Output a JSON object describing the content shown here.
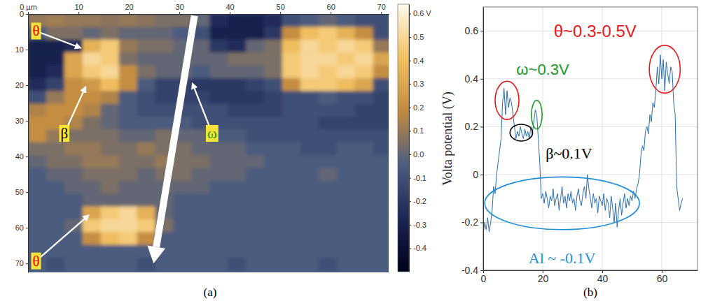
{
  "chart_data": [
    {
      "type": "heatmap",
      "label": "(a)",
      "xlim": [
        0,
        71.5
      ],
      "ylim": [
        0,
        72.5
      ],
      "xticks": [
        {
          "value": 0,
          "label": "0 µm"
        },
        10,
        20,
        30,
        40,
        50,
        60,
        70
      ],
      "yticks": [
        0,
        10,
        20,
        30,
        40,
        50,
        60,
        70
      ],
      "colorbar_lim": [
        -0.5,
        0.64
      ],
      "colorbar_ticks": [
        {
          "value": 0.6,
          "label": "0.6 V"
        },
        0.5,
        0.4,
        0.3,
        0.2,
        0.1,
        {
          "value": 0,
          "label": "0.0"
        },
        -0.1,
        -0.2,
        -0.3,
        -0.4
      ],
      "x_edges": [
        0,
        3.6,
        7.2,
        10.8,
        14.4,
        18,
        21.6,
        25.2,
        28.8,
        32.4,
        36,
        39.6,
        43.2,
        46.8,
        50.4,
        54,
        57.6,
        61.2,
        64.8,
        68.4,
        72
      ],
      "y_edges": [
        0,
        3.6,
        7.2,
        10.8,
        14.4,
        18,
        21.6,
        25.2,
        28.8,
        32.4,
        36,
        39.6,
        43.2,
        46.8,
        50.4,
        54,
        57.6,
        61.2,
        64.8,
        68.4,
        72
      ],
      "cells": [
        [
          0.1,
          0.12,
          0.1,
          0.1,
          0.08,
          0.1,
          0.08,
          0.05,
          0.05,
          0,
          -0.25,
          -0.3,
          -0.3,
          -0.25,
          -0.1,
          -0.05,
          0,
          -0.05,
          -0.1,
          -0.1
        ],
        [
          -0.05,
          0.05,
          0.05,
          0,
          0.05,
          0,
          0,
          0,
          -0.05,
          -0.1,
          -0.3,
          -0.3,
          -0.3,
          -0.2,
          0.2,
          0.4,
          0.45,
          0.35,
          0.2,
          -0.1
        ],
        [
          -0.3,
          -0.3,
          -0.25,
          0.35,
          0.45,
          0.1,
          0.05,
          0.05,
          0,
          0,
          -0.2,
          -0.25,
          0,
          0.05,
          0.4,
          0.5,
          0.45,
          0.5,
          0.45,
          0.1
        ],
        [
          -0.3,
          -0.3,
          0.3,
          0.5,
          0.45,
          0.05,
          0,
          0,
          0,
          0,
          0,
          0.05,
          0.05,
          0.05,
          0.45,
          0.5,
          0.5,
          0.45,
          0.5,
          0.3
        ],
        [
          -0.3,
          -0.25,
          0.3,
          0.45,
          0.5,
          0.2,
          0.05,
          0,
          0,
          -0.05,
          0,
          0,
          0,
          0.05,
          0.45,
          0.5,
          0.45,
          0.5,
          0.45,
          0.2
        ],
        [
          -0.25,
          -0.15,
          0.2,
          0.25,
          0.4,
          0.2,
          -0.05,
          -0.15,
          -0.15,
          -0.2,
          -0.2,
          -0.2,
          -0.15,
          -0.1,
          0.2,
          0.45,
          0.45,
          0.4,
          0.3,
          -0.1
        ],
        [
          -0.1,
          0.1,
          0.2,
          0.2,
          0.15,
          -0.05,
          -0.1,
          -0.15,
          -0.15,
          -0.15,
          -0.2,
          -0.2,
          -0.2,
          -0.15,
          -0.1,
          -0.1,
          -0.05,
          -0.1,
          -0.1,
          -0.15
        ],
        [
          0.15,
          0.2,
          0.2,
          0.15,
          0,
          -0.05,
          -0.1,
          -0.1,
          -0.1,
          -0.1,
          -0.1,
          -0.15,
          -0.15,
          -0.15,
          -0.1,
          -0.1,
          -0.1,
          -0.1,
          -0.15,
          -0.15
        ],
        [
          0.2,
          0.2,
          0.15,
          0.05,
          0,
          -0.05,
          -0.05,
          -0.05,
          -0.05,
          -0.1,
          -0.1,
          -0.1,
          -0.1,
          -0.1,
          -0.1,
          -0.1,
          -0.15,
          -0.15,
          -0.15,
          -0.15
        ],
        [
          0.2,
          0.1,
          0.05,
          0.05,
          0.05,
          0,
          0,
          0.05,
          0,
          0,
          -0.05,
          -0.05,
          -0.1,
          -0.1,
          -0.1,
          -0.1,
          -0.1,
          -0.1,
          -0.1,
          -0.1
        ],
        [
          0.05,
          0.05,
          0.1,
          0.1,
          0.05,
          0.05,
          0.1,
          0.05,
          0.05,
          0,
          0,
          0,
          -0.05,
          -0.05,
          -0.05,
          -0.1,
          -0.1,
          -0.05,
          -0.05,
          -0.1
        ],
        [
          0,
          0.05,
          0.05,
          0.1,
          0.1,
          0.05,
          0.05,
          0.1,
          0.05,
          0.05,
          0,
          0,
          0,
          -0.05,
          -0.05,
          -0.05,
          -0.05,
          -0.05,
          -0.05,
          -0.05
        ],
        [
          -0.05,
          0,
          0,
          0.05,
          0.05,
          0.05,
          0,
          0.05,
          0.05,
          0,
          0,
          0,
          -0.05,
          -0.05,
          -0.05,
          -0.05,
          0,
          -0.05,
          -0.05,
          -0.05
        ],
        [
          -0.05,
          -0.05,
          0,
          0,
          0.05,
          0,
          0,
          0,
          0,
          0,
          -0.05,
          -0.05,
          -0.05,
          -0.05,
          -0.05,
          -0.05,
          -0.05,
          -0.05,
          -0.05,
          -0.05
        ],
        [
          -0.05,
          -0.05,
          -0.05,
          0,
          0,
          0,
          0,
          0,
          -0.05,
          -0.05,
          -0.05,
          -0.05,
          -0.05,
          -0.05,
          -0.05,
          -0.05,
          -0.05,
          -0.05,
          -0.05,
          -0.05
        ],
        [
          -0.05,
          -0.05,
          -0.05,
          0.3,
          0.45,
          0.5,
          0.35,
          0,
          -0.05,
          -0.05,
          -0.05,
          -0.05,
          -0.05,
          -0.05,
          -0.05,
          -0.05,
          -0.05,
          -0.05,
          -0.05,
          -0.05
        ],
        [
          -0.05,
          -0.05,
          0,
          0.45,
          0.5,
          0.5,
          0.45,
          0.05,
          -0.05,
          -0.05,
          -0.05,
          -0.05,
          -0.05,
          -0.05,
          -0.05,
          -0.05,
          -0.05,
          -0.05,
          -0.05,
          -0.05
        ],
        [
          -0.05,
          -0.05,
          -0.05,
          0.2,
          0.4,
          0.45,
          0.2,
          -0.05,
          -0.05,
          -0.05,
          -0.05,
          -0.05,
          -0.05,
          -0.05,
          -0.05,
          -0.05,
          -0.05,
          -0.05,
          -0.05,
          -0.05
        ],
        [
          -0.05,
          -0.05,
          -0.05,
          -0.05,
          -0.05,
          -0.05,
          -0.05,
          -0.05,
          -0.05,
          -0.05,
          -0.05,
          -0.05,
          -0.05,
          -0.05,
          -0.05,
          -0.05,
          -0.05,
          -0.05,
          -0.05,
          -0.05
        ],
        [
          -0.05,
          -0.1,
          -0.05,
          -0.05,
          -0.05,
          -0.05,
          -0.1,
          -0.05,
          -0.05,
          -0.05,
          -0.05,
          -0.1,
          -0.05,
          -0.05,
          -0.05,
          -0.05,
          -0.1,
          -0.05,
          -0.05,
          -0.05
        ]
      ],
      "annotations": [
        {
          "text": "θ",
          "color": "#e8000b"
        },
        {
          "text": "β",
          "color": "#000000"
        },
        {
          "text": "ω",
          "color": "#1a9a1a"
        },
        {
          "text": "θ",
          "color": "#e8000b"
        }
      ]
    },
    {
      "type": "line",
      "label": "(b)",
      "y_label": "Volta potential (V)",
      "xlim": [
        0,
        72
      ],
      "ylim": [
        -0.4,
        0.7
      ],
      "xticks": [
        0,
        20,
        40,
        60
      ],
      "yticks": [
        -0.4,
        -0.2,
        0,
        0.2,
        0.4,
        0.6
      ],
      "grid": true,
      "color": "#2a6db0",
      "x": [
        0,
        0.5,
        1,
        1.5,
        2,
        2.5,
        3,
        3.5,
        4,
        4.5,
        5,
        5.5,
        6,
        6.5,
        7,
        7.5,
        8,
        8.5,
        9,
        9.5,
        10,
        10.5,
        11,
        11.5,
        12,
        12.5,
        13,
        13.5,
        14,
        14.5,
        15,
        15.5,
        16,
        16.5,
        17,
        17.5,
        18,
        18.5,
        19,
        19.5,
        20,
        20.5,
        21,
        21.5,
        22,
        22.5,
        23,
        23.5,
        24,
        24.5,
        25,
        25.5,
        26,
        26.5,
        27,
        27.5,
        28,
        28.5,
        29,
        29.5,
        30,
        30.5,
        31,
        31.5,
        32,
        32.5,
        33,
        33.5,
        34,
        34.5,
        35,
        35.5,
        36,
        36.5,
        37,
        37.5,
        38,
        38.5,
        39,
        39.5,
        40,
        40.5,
        41,
        41.5,
        42,
        42.5,
        43,
        43.5,
        44,
        44.5,
        45,
        45.5,
        46,
        46.5,
        47,
        47.5,
        48,
        48.5,
        49,
        49.5,
        50,
        50.5,
        51,
        51.5,
        52,
        52.5,
        53,
        53.5,
        54,
        54.5,
        55,
        55.5,
        56,
        56.5,
        57,
        57.5,
        58,
        58.5,
        59,
        59.5,
        60,
        60.5,
        61,
        61.5,
        62,
        62.5,
        63,
        63.5,
        64,
        64.5,
        65,
        65.5,
        66,
        66.5,
        67
      ],
      "values": [
        -0.25,
        -0.2,
        -0.23,
        -0.18,
        -0.24,
        -0.2,
        -0.15,
        -0.05,
        -0.08,
        0,
        0.05,
        0.1,
        0.15,
        0.3,
        0.36,
        0.25,
        0.35,
        0.28,
        0.32,
        0.3,
        0.25,
        0.2,
        0.15,
        0.18,
        0.16,
        0.2,
        0.17,
        0.15,
        0.19,
        0.16,
        0.18,
        0.15,
        0.2,
        0.17,
        0.22,
        0.27,
        0.25,
        0.15,
        0.05,
        -0.1,
        -0.08,
        -0.12,
        -0.07,
        -0.1,
        -0.14,
        -0.09,
        -0.11,
        -0.06,
        -0.13,
        -0.1,
        -0.08,
        -0.15,
        -0.1,
        -0.05,
        -0.12,
        -0.09,
        -0.14,
        -0.08,
        -0.11,
        -0.07,
        -0.12,
        -0.1,
        -0.15,
        -0.09,
        -0.06,
        -0.11,
        -0.13,
        -0.08,
        -0.05,
        -0.1,
        0,
        -0.06,
        -0.1,
        -0.14,
        -0.08,
        -0.12,
        -0.1,
        -0.16,
        -0.09,
        -0.11,
        -0.13,
        -0.08,
        -0.15,
        -0.1,
        -0.12,
        -0.18,
        -0.09,
        -0.14,
        -0.2,
        -0.12,
        -0.22,
        -0.15,
        -0.1,
        -0.17,
        -0.12,
        -0.08,
        -0.14,
        -0.1,
        -0.13,
        -0.09,
        -0.11,
        -0.07,
        -0.1,
        -0.06,
        -0.04,
        0,
        0.08,
        0.12,
        0.1,
        0.18,
        0.2,
        0.17,
        0.25,
        0.22,
        0.3,
        0.28,
        0.35,
        0.45,
        0.38,
        0.5,
        0.4,
        0.48,
        0.35,
        0.47,
        0.42,
        0.38,
        0.45,
        0.43,
        0.3,
        0.25,
        -0.05,
        -0.1,
        -0.15,
        -0.12,
        -0.1
      ],
      "annotations": [
        {
          "text": "θ~0.3-0.5V",
          "color": "#e41a1c"
        },
        {
          "text": "ω~0.3V",
          "color": "#1a9a2a"
        },
        {
          "text": "β~0.1V",
          "color": "#000000"
        },
        {
          "text": "Al ~ -0.1V",
          "color": "#1f8fd6"
        }
      ]
    }
  ]
}
